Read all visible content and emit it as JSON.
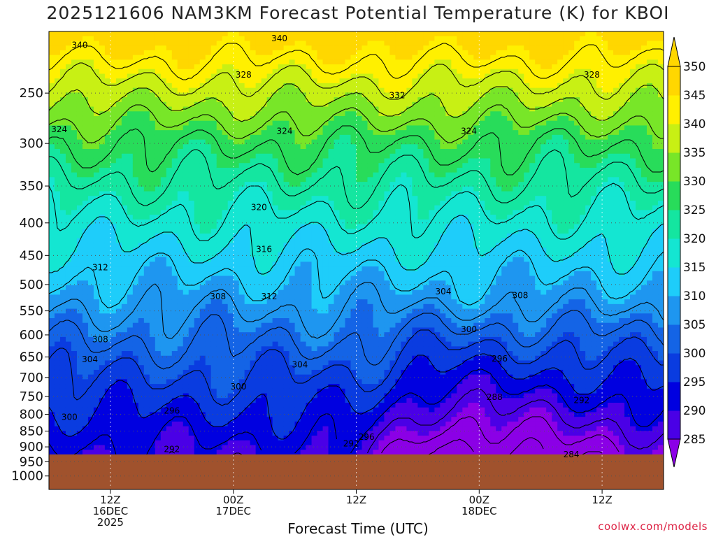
{
  "title": "2025121606 NAM3KM Forecast Potential Temperature (K) for KBOI",
  "xlabel": "Forecast Time (UTC)",
  "credit": "coolwx.com/models",
  "colors": {
    "ground": "#A0522D",
    "contour": "#000000",
    "grid": "#555555"
  },
  "chart_data": {
    "type": "heatmap",
    "title": "2025121606 NAM3KM Forecast Potential Temperature (K) for KBOI",
    "xlabel": "Forecast Time (UTC)",
    "ylabel": "",
    "x_range_hours": [
      0,
      60
    ],
    "y_axis": "pressure (log scale, inverted)",
    "ylim": [
      1050,
      200
    ],
    "y_ticks": [
      250,
      300,
      350,
      400,
      450,
      500,
      550,
      600,
      650,
      700,
      750,
      800,
      850,
      900,
      950,
      1000
    ],
    "x_ticks": [
      {
        "hour": 6,
        "label": [
          "12Z",
          "16DEC",
          "2025"
        ]
      },
      {
        "hour": 18,
        "label": [
          "00Z",
          "17DEC"
        ]
      },
      {
        "hour": 30,
        "label": [
          "12Z"
        ]
      },
      {
        "hour": 42,
        "label": [
          "00Z",
          "18DEC"
        ]
      },
      {
        "hour": 54,
        "label": [
          "12Z"
        ]
      }
    ],
    "colorbar": {
      "levels": [
        285,
        290,
        295,
        300,
        305,
        310,
        315,
        320,
        325,
        330,
        335,
        340,
        345,
        350
      ],
      "colors": [
        "#8B00E6",
        "#4A00E6",
        "#0000E0",
        "#0A3CE0",
        "#1464E6",
        "#1E96F0",
        "#1ECDFA",
        "#14E6D2",
        "#14E6A0",
        "#28DC5A",
        "#78E628",
        "#C8F014",
        "#FFF000",
        "#FFD700"
      ]
    },
    "contour_interval": 4,
    "contour_labels": [
      {
        "value": 340,
        "hour": 3,
        "pres": 210
      },
      {
        "value": 340,
        "hour": 22.5,
        "pres": 205
      },
      {
        "value": 328,
        "hour": 19,
        "pres": 234
      },
      {
        "value": 332,
        "hour": 34,
        "pres": 252
      },
      {
        "value": 328,
        "hour": 53,
        "pres": 234
      },
      {
        "value": 324,
        "hour": 1,
        "pres": 285
      },
      {
        "value": 324,
        "hour": 23,
        "pres": 287
      },
      {
        "value": 324,
        "hour": 41,
        "pres": 287
      },
      {
        "value": 320,
        "hour": 20.5,
        "pres": 378
      },
      {
        "value": 316,
        "hour": 21,
        "pres": 440
      },
      {
        "value": 312,
        "hour": 5,
        "pres": 470
      },
      {
        "value": 312,
        "hour": 21.5,
        "pres": 522
      },
      {
        "value": 308,
        "hour": 16.5,
        "pres": 522
      },
      {
        "value": 304,
        "hour": 38.5,
        "pres": 513
      },
      {
        "value": 308,
        "hour": 46,
        "pres": 520
      },
      {
        "value": 300,
        "hour": 41,
        "pres": 588
      },
      {
        "value": 308,
        "hour": 5,
        "pres": 610
      },
      {
        "value": 304,
        "hour": 4,
        "pres": 656
      },
      {
        "value": 304,
        "hour": 24.5,
        "pres": 668
      },
      {
        "value": 296,
        "hour": 44,
        "pres": 654
      },
      {
        "value": 300,
        "hour": 18.5,
        "pres": 724
      },
      {
        "value": 288,
        "hour": 43.5,
        "pres": 752
      },
      {
        "value": 292,
        "hour": 52,
        "pres": 760
      },
      {
        "value": 300,
        "hour": 2,
        "pres": 808
      },
      {
        "value": 296,
        "hour": 12,
        "pres": 790
      },
      {
        "value": 296,
        "hour": 31,
        "pres": 868
      },
      {
        "value": 292,
        "hour": 29.5,
        "pres": 890
      },
      {
        "value": 292,
        "hour": 12,
        "pres": 908
      },
      {
        "value": 284,
        "hour": 51,
        "pres": 925
      }
    ]
  }
}
